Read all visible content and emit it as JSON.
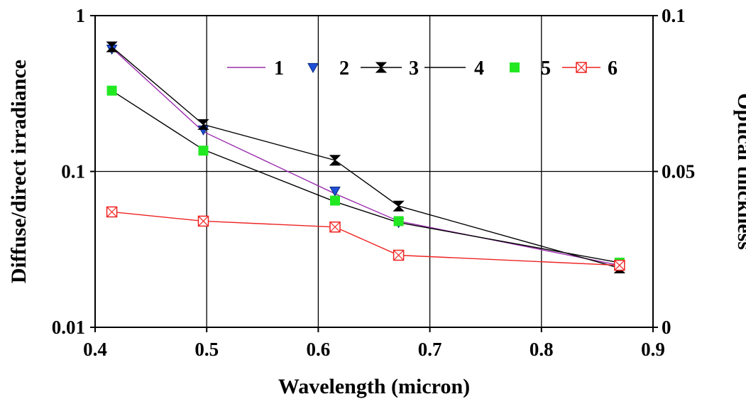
{
  "chart_data": {
    "type": "line",
    "xlabel": "Wavelength  (micron)",
    "ylabel_left": "Diffuse/direct irradiance",
    "ylabel_right": "Optical thickness",
    "xlim": [
      0.4,
      0.9
    ],
    "ylim_left": [
      0.01,
      1
    ],
    "y_left_scale": "log",
    "ylim_right": [
      0,
      0.1
    ],
    "x_ticks": [
      "0.4",
      "0.5",
      "0.6",
      "0.7",
      "0.8",
      "0.9"
    ],
    "y_left_ticks": [
      "0.01",
      "0.1",
      "1"
    ],
    "y_right_ticks": [
      "0",
      "0.05",
      "0.1"
    ],
    "grid": true,
    "legend_position": "top-right",
    "series": [
      {
        "name": "1",
        "marker": "none",
        "line": true,
        "color": "#9b2fae",
        "axis": "left",
        "x": [
          0.415,
          0.497,
          0.615,
          0.672,
          0.87
        ],
        "y": [
          0.62,
          0.18,
          0.072,
          0.048,
          0.025
        ]
      },
      {
        "name": "2",
        "marker": "triangle-down",
        "line": false,
        "color": "#1f4fd8",
        "axis": "left",
        "x": [
          0.415,
          0.497,
          0.615,
          0.672,
          0.87
        ],
        "y": [
          0.61,
          0.185,
          0.075,
          0.047,
          0.025
        ]
      },
      {
        "name": "3",
        "marker": "hourglass",
        "line": true,
        "color": "#000000",
        "axis": "left",
        "x": [
          0.415,
          0.497,
          0.615,
          0.672,
          0.87
        ],
        "y": [
          0.63,
          0.2,
          0.118,
          0.06,
          0.024
        ]
      },
      {
        "name": "4",
        "marker": "none",
        "line": true,
        "color": "#000000",
        "axis": "left",
        "x": [
          0.415,
          0.497,
          0.615,
          0.672,
          0.87
        ],
        "y": [
          0.33,
          0.138,
          0.064,
          0.047,
          0.026
        ]
      },
      {
        "name": "5",
        "marker": "square",
        "line": false,
        "color": "#22e822",
        "axis": "left",
        "x": [
          0.415,
          0.497,
          0.615,
          0.672,
          0.87
        ],
        "y": [
          0.33,
          0.136,
          0.065,
          0.048,
          0.026
        ]
      },
      {
        "name": "6",
        "marker": "square-x",
        "line": true,
        "color": "#ee2222",
        "axis": "left",
        "x": [
          0.415,
          0.497,
          0.615,
          0.672,
          0.87
        ],
        "y": [
          0.055,
          0.048,
          0.044,
          0.029,
          0.025
        ]
      }
    ]
  }
}
